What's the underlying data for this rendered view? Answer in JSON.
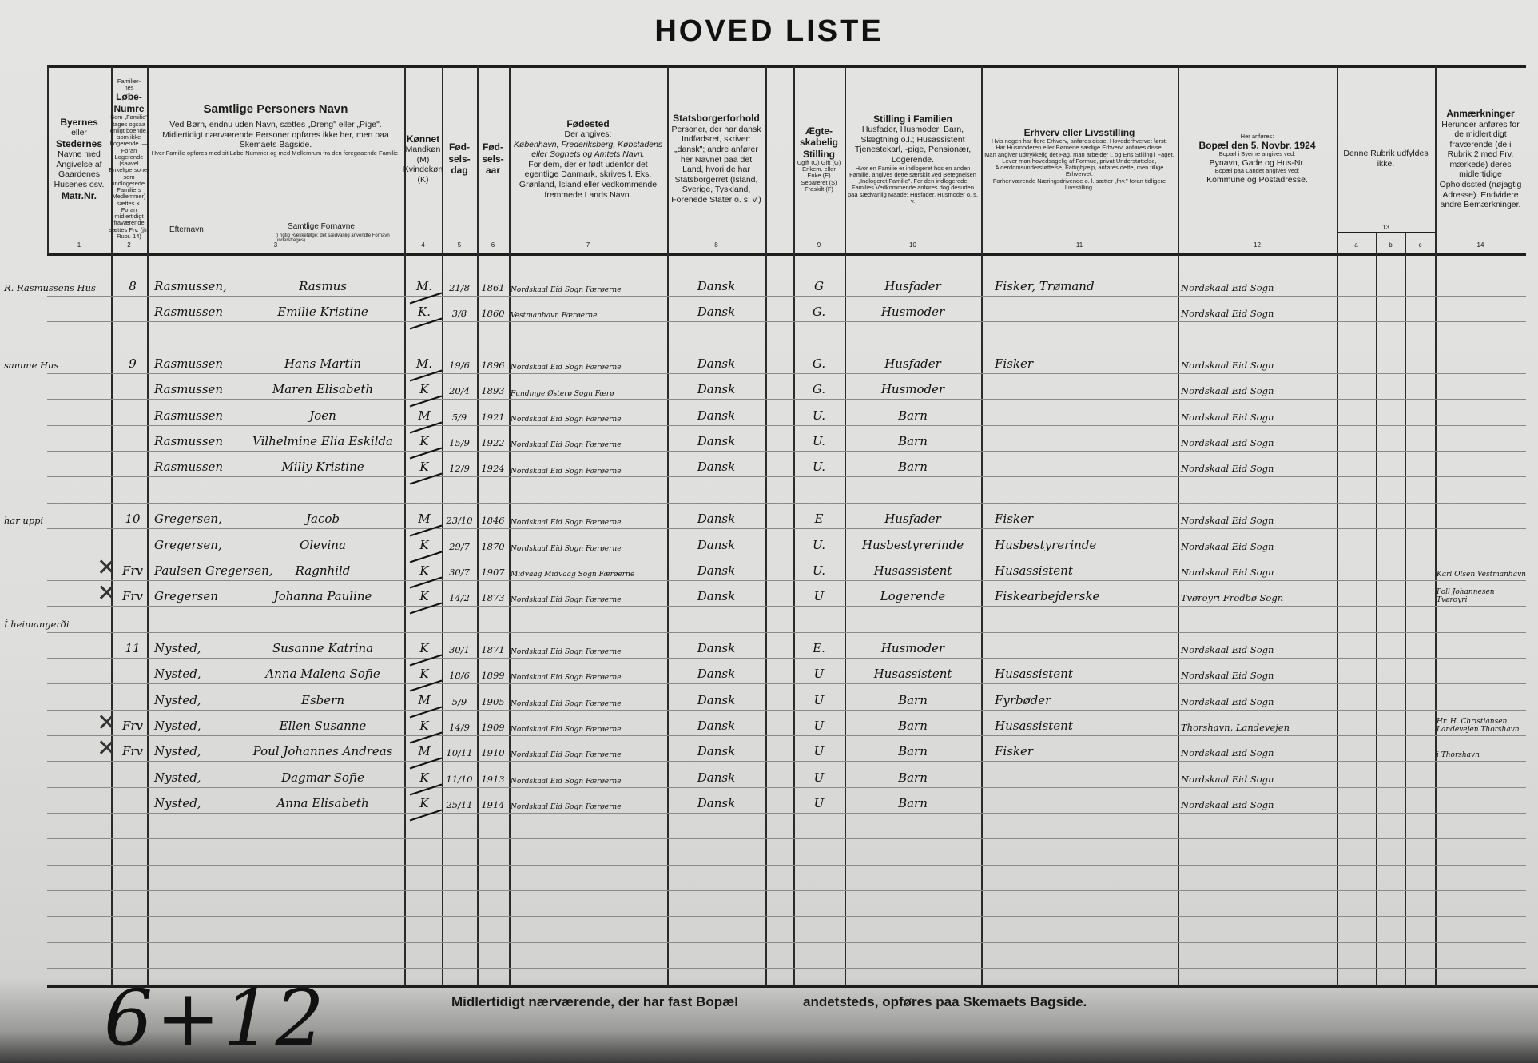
{
  "title": "HOVED LISTE",
  "header": {
    "columns": [
      {
        "num": "1",
        "lines": [
          {
            "t": "Byernes",
            "c": "b"
          },
          {
            "t": "eller"
          },
          {
            "t": "Stedernes",
            "c": "b"
          },
          {
            "t": "Navne med"
          },
          {
            "t": "Angivelse af"
          },
          {
            "t": "Gaardenes"
          },
          {
            "t": "Husenes osv."
          },
          {
            "t": "Matr.Nr.",
            "c": "b"
          }
        ]
      },
      {
        "num": "2",
        "lines": [
          {
            "t": "Familier-nes",
            "c": "sm"
          },
          {
            "t": "Løbe-Numre",
            "c": "b"
          },
          {
            "t": "Som „Familie\" tages ogsaa enligt boende, som ikke Logerende. — Foran Logerende (saavel Enkeltpersoner som indlogerede Familiers Medlemmer) sættes ×. Foran midlertidigt fraværende sættes Frv. (jfr. Rubr. 14)",
            "c": "sm"
          }
        ]
      },
      {
        "num": "3",
        "lines": [
          {
            "t": "Samtlige Personers Navn",
            "c": "big"
          },
          {
            "t": "Ved Børn, endnu uden Navn, sættes „Dreng\" eller „Pige\"."
          },
          {
            "t": "Midlertidigt nærværende Personer opføres ikke her, men paa Skemaets Bagside."
          },
          {
            "t": "Hver Familie opføres med sit Løbe-Nummer og med Mellemrum fra den foregaaende Familie.",
            "c": "sm"
          }
        ]
      },
      {
        "num": "4",
        "lines": [
          {
            "t": "Kønnet",
            "c": "b"
          },
          {
            "t": "Mandkøn (M)"
          },
          {
            "t": "Kvindekøn (K)"
          }
        ]
      },
      {
        "num": "5",
        "lines": [
          {
            "t": "Fød-sels-dag",
            "c": "b"
          }
        ]
      },
      {
        "num": "6",
        "lines": [
          {
            "t": "Fød-sels-aar",
            "c": "b"
          }
        ]
      },
      {
        "num": "7",
        "lines": [
          {
            "t": "Fødested",
            "c": "b"
          },
          {
            "t": "Der angives:"
          },
          {
            "t": "København, Frederiksberg, Købstadens eller Sognets og Amtets Navn.",
            "c": "i"
          },
          {
            "t": "For dem, der er født udenfor det egentlige Danmark, skrives f. Eks. Grønland, Island eller vedkommende fremmede Lands Navn."
          }
        ]
      },
      {
        "num": "8",
        "lines": [
          {
            "t": "Statsborgerforhold",
            "c": "b"
          },
          {
            "t": "Personer, der har dansk Indfødsret, skriver: „dansk\"; andre anfører her Navnet paa det Land, hvori de har Statsborgerret (Island, Sverige, Tyskland, Forenede Stater o. s. v.)"
          }
        ]
      },
      {
        "num": "9",
        "lines": [
          {
            "t": "Ægte-skabelig Stilling",
            "c": "b"
          },
          {
            "t": "Ugift (U) Gift (G) Enkem. eller Enke (E) Separeret (S) Fraskilt (F)",
            "c": "sm"
          }
        ]
      },
      {
        "num": "10",
        "lines": [
          {
            "t": "Stilling i Familien",
            "c": "b"
          },
          {
            "t": "Husfader, Husmoder; Barn, Slægtning o.l.; Husassistent Tjenestekarl, -pige, Pensionær, Logerende."
          },
          {
            "t": "Hvor en Familie er indlogeret hos en anden Familie, angives dette særskilt ved Betegnelsen „Indlogeret Familie\". For den indlogerede Families Vedkommende anføres dog desuden paa sædvanlig Maade: Husfader, Husmoder o. s. v.",
            "c": "sm"
          }
        ]
      },
      {
        "num": "11",
        "lines": [
          {
            "t": "Erhverv eller Livsstilling",
            "c": "b"
          },
          {
            "t": "Hvis nogen har flere Erhverv, anføres disse, Hovederhvervet først.",
            "c": "sm"
          },
          {
            "t": "Har Husmoderen eller Børnene særlige Erhverv, anføres disse.",
            "c": "sm"
          },
          {
            "t": "Man angiver udtrykkelig det Fag, man arbejder i, og Ens Stilling i Faget.",
            "c": "sm"
          },
          {
            "t": "Lever man hovedsagelig af Formue, privat Understøttelse, Alderdomsunderstøttelse, Fattighjælp, anføres dette, men tillige Erhvervet.",
            "c": "sm"
          },
          {
            "t": "Forhenværende Næringsdrivende o. l. sætter „fhv.\" foran tidligere Livsstilling.",
            "c": "sm"
          }
        ]
      },
      {
        "num": "12",
        "lines": [
          {
            "t": "Her anføres:",
            "c": "sm"
          },
          {
            "t": "Bopæl den 5. Novbr. 1924",
            "c": "b"
          },
          {
            "t": "Bopæl i Byerne angives ved:",
            "c": "sm"
          },
          {
            "t": "Bynavn, Gade og Hus-Nr."
          },
          {
            "t": "Bopæl paa Landet angives ved:",
            "c": "sm"
          },
          {
            "t": "Kommune og Postadresse."
          }
        ]
      },
      {
        "num": "13",
        "lines": [
          {
            "t": "Denne Rubrik udfyldes ikke."
          }
        ]
      },
      {
        "num": "14",
        "lines": [
          {
            "t": "Anmærkninger",
            "c": "b"
          },
          {
            "t": "Herunder anføres for de midlertidigt fraværende (de i Rubrik 2 med Frv. mærkede) deres midlertidige Opholdssted (nøjagtig Adresse). Endvidere andre Bemærkninger."
          }
        ]
      }
    ],
    "surname_label": "Efternavn",
    "given_label": "Samtlige Fornavne",
    "given_note": "(i rigtig Rækkefølge; det sædvanlig anvendte Fornavn understreges)",
    "sub13": [
      "a",
      "b",
      "c"
    ]
  },
  "rows": [
    {
      "addr": "R. Rasmussens Hus",
      "fam": "8",
      "surname": "Rasmussen,",
      "given": "Rasmus",
      "sex": "M.",
      "day": "21/8",
      "year": "1861",
      "birthplace": "Nordskaal Eid Sogn Færøerne",
      "citizen": "Dansk",
      "marital": "G",
      "position": "Husfader",
      "occupation": "Fisker, Trømand",
      "residence": "Nordskaal Eid Sogn"
    },
    {
      "surname": "Rasmussen",
      "given": "Emilie Kristine",
      "sex": "K.",
      "day": "3/8",
      "year": "1860",
      "birthplace": "Vestmanhavn Færøerne",
      "citizen": "Dansk",
      "marital": "G.",
      "position": "Husmoder",
      "residence": "Nordskaal Eid Sogn"
    },
    {},
    {
      "addr": "samme Hus",
      "fam": "9",
      "surname": "Rasmussen",
      "given": "Hans Martin",
      "sex": "M.",
      "day": "19/6",
      "year": "1896",
      "birthplace": "Nordskaal Eid Sogn Færøerne",
      "citizen": "Dansk",
      "marital": "G.",
      "position": "Husfader",
      "occupation": "Fisker",
      "residence": "Nordskaal Eid Sogn"
    },
    {
      "surname": "Rasmussen",
      "given": "Maren Elisabeth",
      "sex": "K",
      "day": "20/4",
      "year": "1893",
      "birthplace": "Fundinge Østerø Sogn Færø",
      "citizen": "Dansk",
      "marital": "G.",
      "position": "Husmoder",
      "residence": "Nordskaal Eid Sogn"
    },
    {
      "surname": "Rasmussen",
      "given": "Joen",
      "sex": "M",
      "day": "5/9",
      "year": "1921",
      "birthplace": "Nordskaal Eid Sogn Færøerne",
      "citizen": "Dansk",
      "marital": "U.",
      "position": "Barn",
      "residence": "Nordskaal Eid Sogn"
    },
    {
      "surname": "Rasmussen",
      "given": "Vilhelmine Elia Eskilda",
      "sex": "K",
      "day": "15/9",
      "year": "1922",
      "birthplace": "Nordskaal Eid Sogn Færøerne",
      "citizen": "Dansk",
      "marital": "U.",
      "position": "Barn",
      "residence": "Nordskaal Eid Sogn"
    },
    {
      "surname": "Rasmussen",
      "given": "Milly Kristine",
      "sex": "K",
      "day": "12/9",
      "year": "1924",
      "birthplace": "Nordskaal Eid Sogn Færøerne",
      "citizen": "Dansk",
      "marital": "U.",
      "position": "Barn",
      "residence": "Nordskaal Eid Sogn"
    },
    {},
    {
      "addr": "har uppi",
      "fam": "10",
      "surname": "Gregersen,",
      "given": "Jacob",
      "sex": "M",
      "day": "23/10",
      "year": "1846",
      "birthplace": "Nordskaal Eid Sogn Færøerne",
      "citizen": "Dansk",
      "marital": "E",
      "position": "Husfader",
      "occupation": "Fisker",
      "residence": "Nordskaal Eid Sogn"
    },
    {
      "surname": "Gregersen,",
      "given": "Olevina",
      "sex": "K",
      "day": "29/7",
      "year": "1870",
      "birthplace": "Nordskaal Eid Sogn Færøerne",
      "citizen": "Dansk",
      "marital": "U.",
      "position": "Husbestyrerinde",
      "occupation": "Husbestyrerinde",
      "residence": "Nordskaal Eid Sogn"
    },
    {
      "mark": "X",
      "fam": "Frv",
      "surname": "Paulsen Gregersen,",
      "given": "Ragnhild",
      "sex": "K",
      "day": "30/7",
      "year": "1907",
      "birthplace": "Midvaag Midvaag Sogn Færøerne",
      "citizen": "Dansk",
      "marital": "U.",
      "position": "Husassistent",
      "occupation": "Husassistent",
      "residence": "Nordskaal Eid Sogn",
      "remarks": "Karl Olsen Vestmanhavn"
    },
    {
      "mark": "X",
      "fam": "Frv",
      "surname": "Gregersen",
      "given": "Johanna Pauline",
      "sex": "K",
      "day": "14/2",
      "year": "1873",
      "birthplace": "Nordskaal Eid Sogn Færøerne",
      "citizen": "Dansk",
      "marital": "U",
      "position": "Logerende",
      "occupation": "Fiskearbejderske",
      "residence": "Tvøroyri Frodbø Sogn",
      "remarks": "Poll Johannesen Tvøroyri"
    },
    {
      "addr": "Í heimangerði"
    },
    {
      "fam": "11",
      "surname": "Nysted,",
      "given": "Susanne Katrina",
      "sex": "K",
      "day": "30/1",
      "year": "1871",
      "birthplace": "Nordskaal Eid Sogn Færøerne",
      "citizen": "Dansk",
      "marital": "E.",
      "position": "Husmoder",
      "residence": "Nordskaal Eid Sogn"
    },
    {
      "surname": "Nysted,",
      "given": "Anna Malena Sofie",
      "sex": "K",
      "day": "18/6",
      "year": "1899",
      "birthplace": "Nordskaal Eid Sogn Færøerne",
      "citizen": "Dansk",
      "marital": "U",
      "position": "Husassistent",
      "occupation": "Husassistent",
      "residence": "Nordskaal Eid Sogn"
    },
    {
      "surname": "Nysted,",
      "given": "Esbern",
      "sex": "M",
      "day": "5/9",
      "year": "1905",
      "birthplace": "Nordskaal Eid Sogn Færøerne",
      "citizen": "Dansk",
      "marital": "U",
      "position": "Barn",
      "occupation": "Fyrbøder",
      "residence": "Nordskaal Eid Sogn"
    },
    {
      "mark": "X",
      "fam": "Frv",
      "surname": "Nysted,",
      "given": "Ellen Susanne",
      "sex": "K",
      "day": "14/9",
      "year": "1909",
      "birthplace": "Nordskaal Eid Sogn Færøerne",
      "citizen": "Dansk",
      "marital": "U",
      "position": "Barn",
      "occupation": "Husassistent",
      "residence": "Thorshavn, Landevejen",
      "remarks": "Hr. H. Christiansen Landevejen Thorshavn"
    },
    {
      "mark": "X",
      "fam": "Frv",
      "surname": "Nysted,",
      "given": "Poul Johannes Andreas",
      "sex": "M",
      "day": "10/11",
      "year": "1910",
      "birthplace": "Nordskaal Eid Sogn Færøerne",
      "citizen": "Dansk",
      "marital": "U",
      "position": "Barn",
      "occupation": "Fisker",
      "residence": "Nordskaal Eid Sogn",
      "remarks": "i Thorshavn"
    },
    {
      "surname": "Nysted,",
      "given": "Dagmar Sofie",
      "sex": "K",
      "day": "11/10",
      "year": "1913",
      "birthplace": "Nordskaal Eid Sogn Færøerne",
      "citizen": "Dansk",
      "marital": "U",
      "position": "Barn",
      "residence": "Nordskaal Eid Sogn"
    },
    {
      "surname": "Nysted,",
      "given": "Anna Elisabeth",
      "sex": "K",
      "day": "25/11",
      "year": "1914",
      "birthplace": "Nordskaal Eid Sogn Færøerne",
      "citizen": "Dansk",
      "marital": "U",
      "position": "Barn",
      "residence": "Nordskaal Eid Sogn"
    },
    {},
    {},
    {},
    {},
    {},
    {}
  ],
  "footer": {
    "left": "Midlertidigt nærværende, der har fast Bopæl",
    "right": "andetsteds, opføres paa Skemaets Bagside.",
    "handwritten_count": "6+12"
  }
}
